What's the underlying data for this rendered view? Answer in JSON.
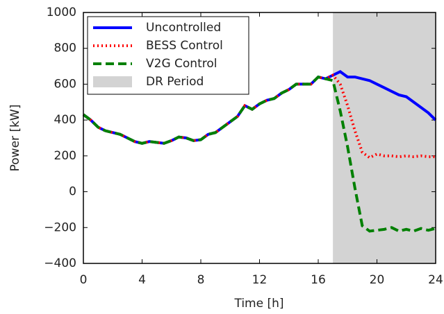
{
  "chart_data": {
    "type": "line",
    "xlabel": "Time [h]",
    "ylabel": "Power [kW]",
    "x": [
      0,
      0.5,
      1,
      1.5,
      2,
      2.5,
      3,
      3.5,
      4,
      4.5,
      5,
      5.5,
      6,
      6.5,
      7,
      7.5,
      8,
      8.5,
      9,
      9.5,
      10,
      10.5,
      11,
      11.5,
      12,
      12.5,
      13,
      13.5,
      14,
      14.5,
      15,
      15.5,
      16,
      16.5,
      17,
      17.5,
      18,
      18.5,
      19,
      19.5,
      20,
      20.5,
      21,
      21.5,
      22,
      22.5,
      23,
      23.5,
      24
    ],
    "series": [
      {
        "name": "Uncontrolled",
        "color": "#0000ff",
        "linestyle": "solid",
        "values": [
          430,
          400,
          360,
          340,
          330,
          320,
          300,
          280,
          270,
          280,
          275,
          270,
          285,
          305,
          300,
          285,
          290,
          320,
          330,
          360,
          390,
          420,
          480,
          460,
          490,
          510,
          520,
          550,
          570,
          600,
          600,
          600,
          640,
          630,
          650,
          670,
          640,
          640,
          630,
          620,
          600,
          580,
          560,
          540,
          530,
          500,
          470,
          440,
          400
        ]
      },
      {
        "name": "BESS Control",
        "color": "#ff0000",
        "linestyle": "dotted",
        "values": [
          430,
          400,
          360,
          340,
          330,
          320,
          300,
          280,
          270,
          280,
          275,
          270,
          285,
          305,
          300,
          285,
          290,
          320,
          330,
          360,
          390,
          420,
          480,
          460,
          490,
          510,
          520,
          550,
          570,
          600,
          600,
          600,
          640,
          630,
          650,
          600,
          480,
          340,
          220,
          190,
          210,
          200,
          200,
          195,
          200,
          195,
          200,
          195,
          195
        ]
      },
      {
        "name": "V2G Control",
        "color": "#008000",
        "linestyle": "dashed",
        "values": [
          430,
          400,
          360,
          340,
          330,
          320,
          300,
          280,
          270,
          280,
          275,
          270,
          285,
          305,
          300,
          285,
          290,
          320,
          330,
          360,
          390,
          420,
          480,
          460,
          490,
          510,
          520,
          550,
          570,
          600,
          600,
          600,
          640,
          630,
          620,
          450,
          250,
          20,
          -190,
          -220,
          -215,
          -210,
          -200,
          -220,
          -210,
          -220,
          -205,
          -215,
          -205
        ]
      }
    ],
    "shaded_regions": [
      {
        "name": "DR Period",
        "start": 17,
        "end": 24,
        "color": "#d3d3d3"
      }
    ],
    "xlim": [
      0,
      24
    ],
    "xticks": [
      0,
      4,
      8,
      12,
      16,
      20,
      24
    ],
    "ylim": [
      -400,
      1000
    ],
    "yticks": [
      {
        "value": -400,
        "label": "−400"
      },
      {
        "value": -200,
        "label": "−200"
      },
      0,
      200,
      400,
      600,
      800,
      1000
    ],
    "legend": "upper left",
    "grid": false
  }
}
